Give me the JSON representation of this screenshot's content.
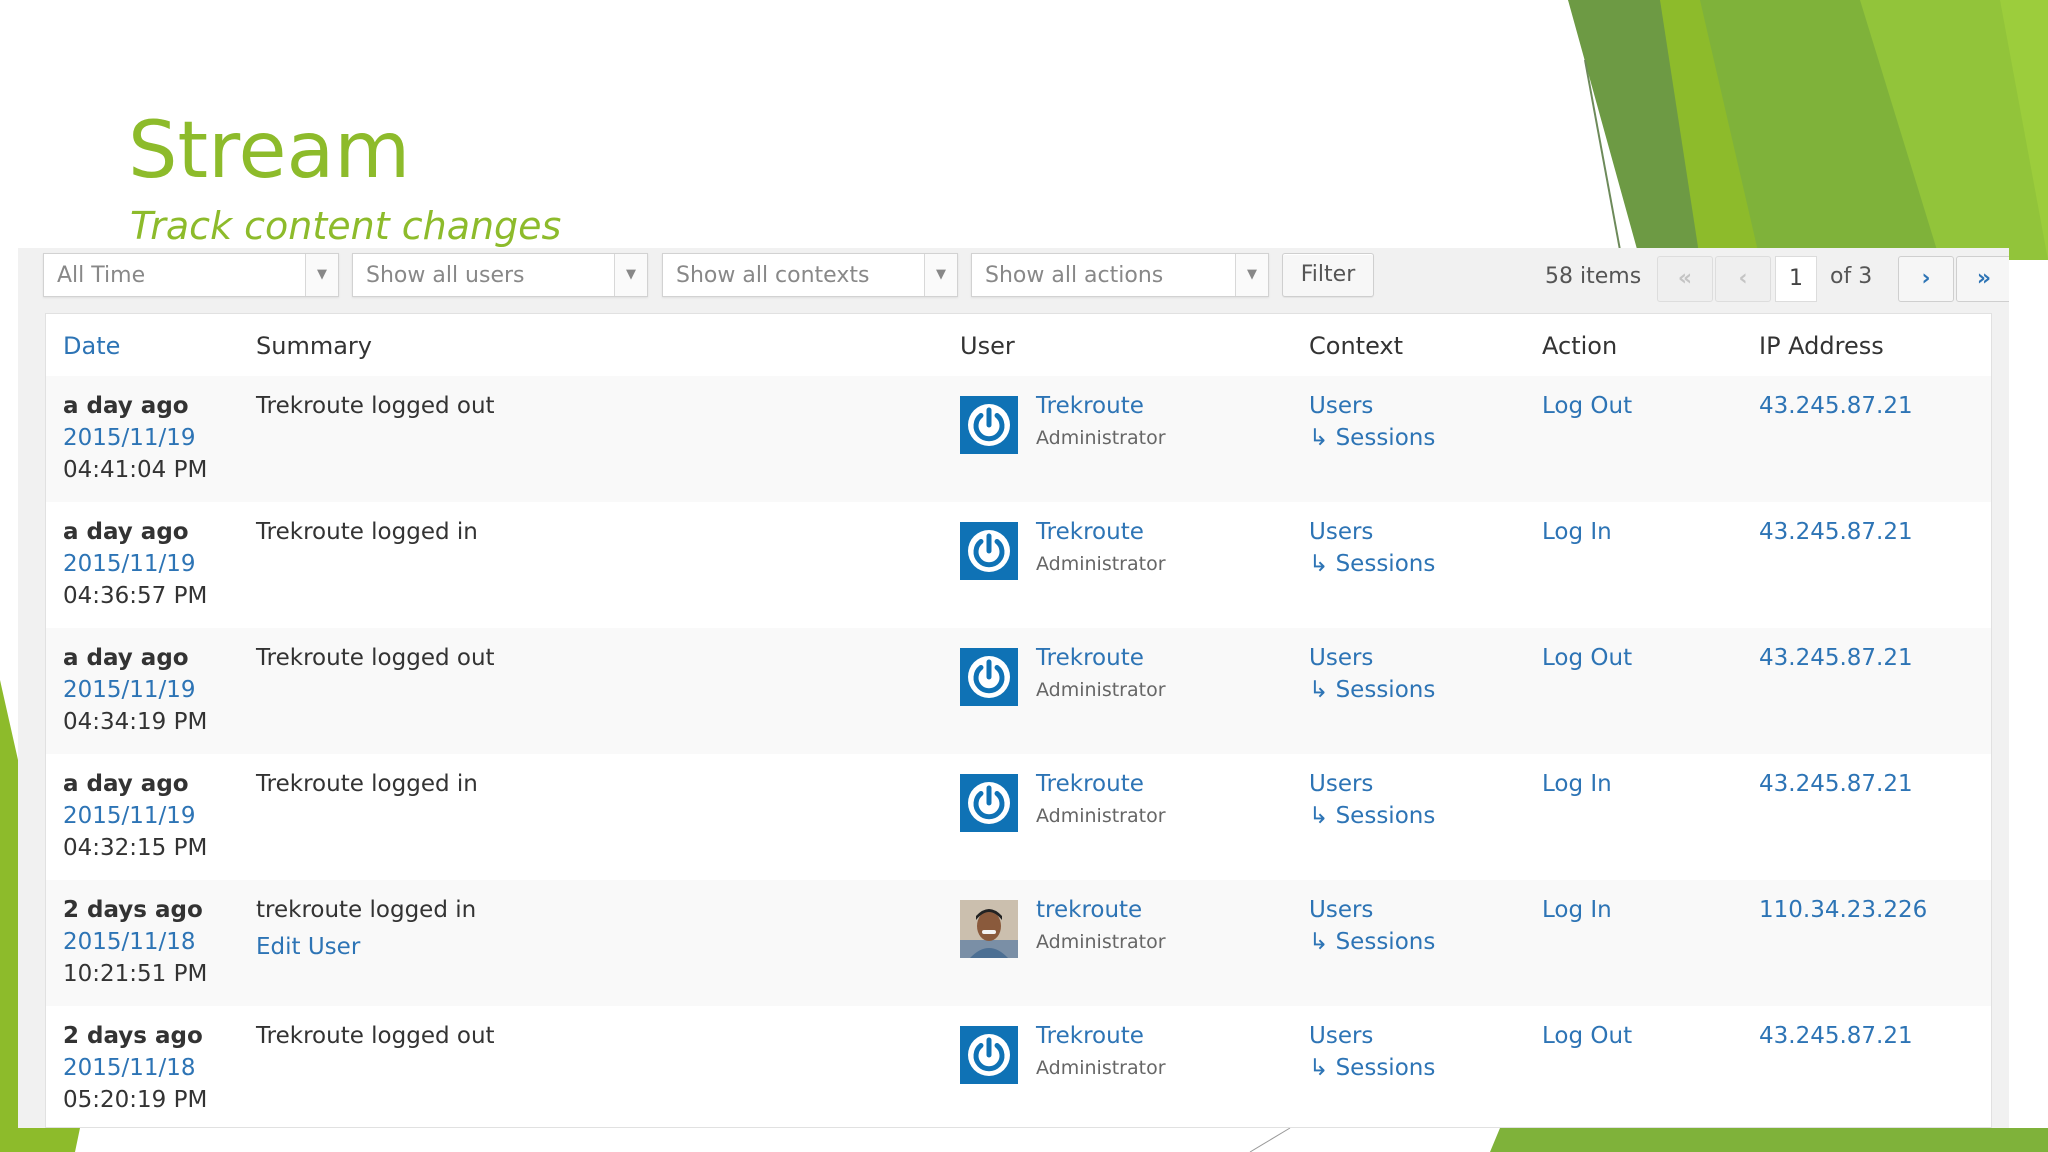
{
  "slide": {
    "title": "Stream",
    "subtitle": "Track content changes"
  },
  "colors": {
    "accent_green": "#8dbb2b",
    "link_blue": "#2d74b5",
    "avatar_blue": "#0f72b5"
  },
  "filters": {
    "time": "All Time",
    "users": "Show all users",
    "contexts": "Show all contexts",
    "actions": "Show all actions",
    "filter_button": "Filter"
  },
  "pagination": {
    "items": "58 items",
    "first": "«",
    "prev": "‹",
    "current": "1",
    "of_total": "of 3",
    "next": "›",
    "last": "»"
  },
  "columns": {
    "date": "Date",
    "summary": "Summary",
    "user": "User",
    "context": "Context",
    "action": "Action",
    "ip": "IP Address"
  },
  "rows": [
    {
      "relative": "a day ago",
      "date": "2015/11/19",
      "time": "04:41:04 PM",
      "summary": "Trekroute logged out",
      "summary_link": "",
      "avatar": "power-icon",
      "user": "Trekroute",
      "role": "Administrator",
      "context": "Users",
      "subcontext": "↳ Sessions",
      "action": "Log Out",
      "ip": "43.245.87.21"
    },
    {
      "relative": "a day ago",
      "date": "2015/11/19",
      "time": "04:36:57 PM",
      "summary": "Trekroute logged in",
      "summary_link": "",
      "avatar": "power-icon",
      "user": "Trekroute",
      "role": "Administrator",
      "context": "Users",
      "subcontext": "↳ Sessions",
      "action": "Log In",
      "ip": "43.245.87.21"
    },
    {
      "relative": "a day ago",
      "date": "2015/11/19",
      "time": "04:34:19 PM",
      "summary": "Trekroute logged out",
      "summary_link": "",
      "avatar": "power-icon",
      "user": "Trekroute",
      "role": "Administrator",
      "context": "Users",
      "subcontext": "↳ Sessions",
      "action": "Log Out",
      "ip": "43.245.87.21"
    },
    {
      "relative": "a day ago",
      "date": "2015/11/19",
      "time": "04:32:15 PM",
      "summary": "Trekroute logged in",
      "summary_link": "",
      "avatar": "power-icon",
      "user": "Trekroute",
      "role": "Administrator",
      "context": "Users",
      "subcontext": "↳ Sessions",
      "action": "Log In",
      "ip": "43.245.87.21"
    },
    {
      "relative": "2 days ago",
      "date": "2015/11/18",
      "time": "10:21:51 PM",
      "summary": "trekroute logged in",
      "summary_link": "Edit User",
      "avatar": "user-photo",
      "user": "trekroute",
      "role": "Administrator",
      "context": "Users",
      "subcontext": "↳ Sessions",
      "action": "Log In",
      "ip": "110.34.23.226"
    },
    {
      "relative": "2 days ago",
      "date": "2015/11/18",
      "time": "05:20:19 PM",
      "summary": "Trekroute logged out",
      "summary_link": "",
      "avatar": "power-icon",
      "user": "Trekroute",
      "role": "Administrator",
      "context": "Users",
      "subcontext": "↳ Sessions",
      "action": "Log Out",
      "ip": "43.245.87.21"
    }
  ]
}
